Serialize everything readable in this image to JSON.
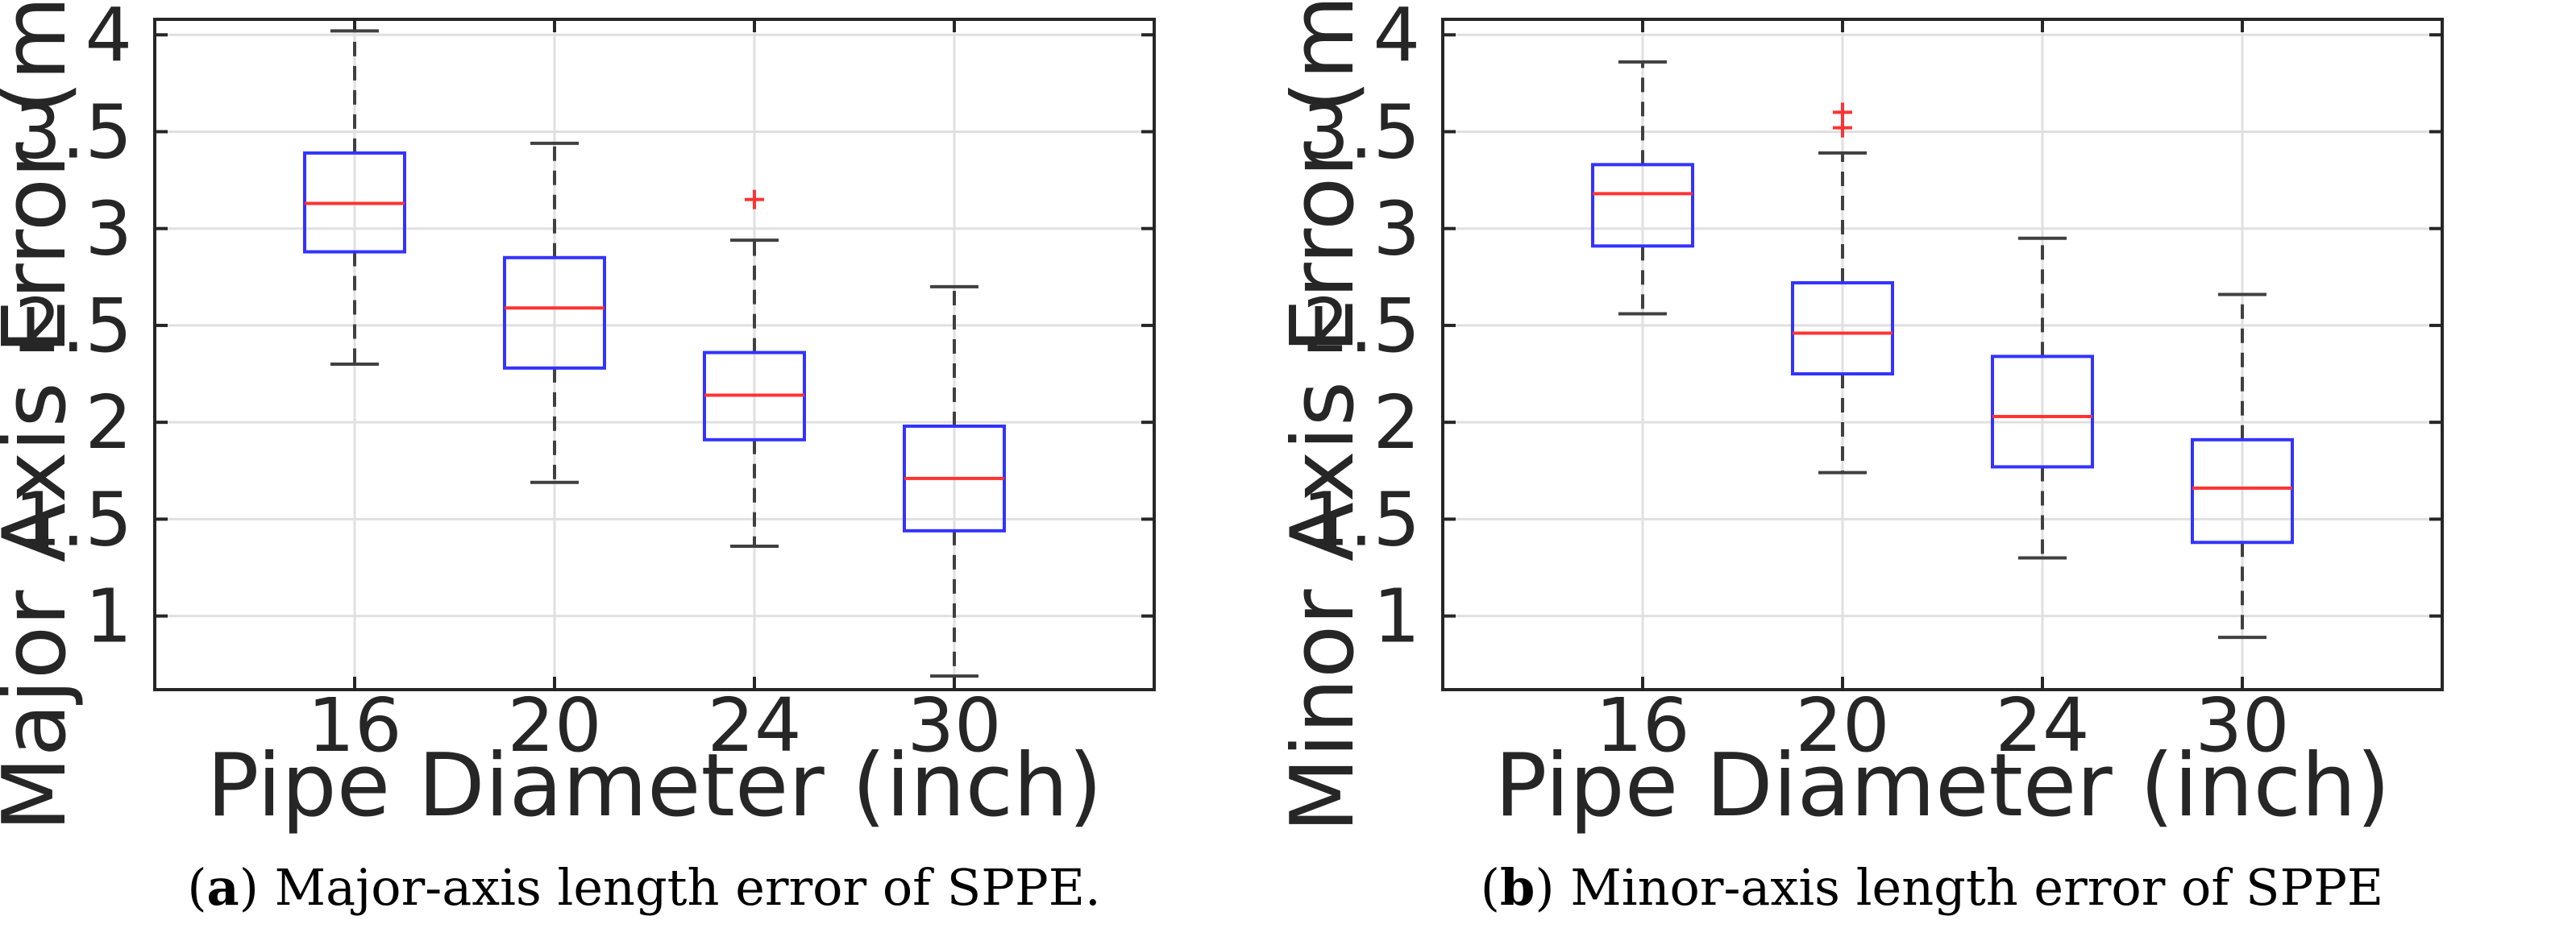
{
  "chart_data": [
    {
      "type": "box",
      "panel_label": "a",
      "caption": "Major-axis length error of SPPE.",
      "xlabel": "Pipe Diameter (inch)",
      "ylabel": "Major Axis Error (mm)",
      "categories": [
        "16",
        "20",
        "24",
        "30"
      ],
      "ylim": [
        0.62,
        4.08
      ],
      "yticks": [
        1,
        1.5,
        2,
        2.5,
        3,
        3.5,
        4
      ],
      "ytick_labels": [
        "1",
        "1.5",
        "2",
        "2.5",
        "3",
        "3.5",
        "4"
      ],
      "grid": true,
      "boxes": [
        {
          "category": "16",
          "whisker_low": 2.3,
          "q1": 2.88,
          "median": 3.13,
          "q3": 3.39,
          "whisker_high": 4.02,
          "outliers": []
        },
        {
          "category": "20",
          "whisker_low": 1.69,
          "q1": 2.28,
          "median": 2.59,
          "q3": 2.85,
          "whisker_high": 3.44,
          "outliers": []
        },
        {
          "category": "24",
          "whisker_low": 1.36,
          "q1": 1.91,
          "median": 2.14,
          "q3": 2.36,
          "whisker_high": 2.94,
          "outliers": [
            3.15
          ]
        },
        {
          "category": "30",
          "whisker_low": 0.69,
          "q1": 1.44,
          "median": 1.71,
          "q3": 1.98,
          "whisker_high": 2.7,
          "outliers": []
        }
      ]
    },
    {
      "type": "box",
      "panel_label": "b",
      "caption": "Minor-axis length error of SPPE",
      "xlabel": "Pipe Diameter (inch)",
      "ylabel": "Minor Axis Error (mm)",
      "categories": [
        "16",
        "20",
        "24",
        "30"
      ],
      "ylim": [
        0.62,
        4.08
      ],
      "yticks": [
        1,
        1.5,
        2,
        2.5,
        3,
        3.5,
        4
      ],
      "ytick_labels": [
        "1",
        "1.5",
        "2",
        "2.5",
        "3",
        "3.5",
        "4"
      ],
      "grid": true,
      "boxes": [
        {
          "category": "16",
          "whisker_low": 2.56,
          "q1": 2.91,
          "median": 3.18,
          "q3": 3.33,
          "whisker_high": 3.86,
          "outliers": []
        },
        {
          "category": "20",
          "whisker_low": 1.74,
          "q1": 2.25,
          "median": 2.46,
          "q3": 2.72,
          "whisker_high": 3.39,
          "outliers": [
            3.52,
            3.6
          ]
        },
        {
          "category": "24",
          "whisker_low": 1.3,
          "q1": 1.77,
          "median": 2.03,
          "q3": 2.34,
          "whisker_high": 2.95,
          "outliers": []
        },
        {
          "category": "30",
          "whisker_low": 0.89,
          "q1": 1.38,
          "median": 1.66,
          "q3": 1.91,
          "whisker_high": 2.66,
          "outliers": []
        }
      ]
    }
  ],
  "colors": {
    "box": "#3333ff",
    "median": "#ff3333",
    "whisker": "#404040",
    "outlier": "#ff3333",
    "grid": "#e0e0e0",
    "axis": "#262626"
  }
}
